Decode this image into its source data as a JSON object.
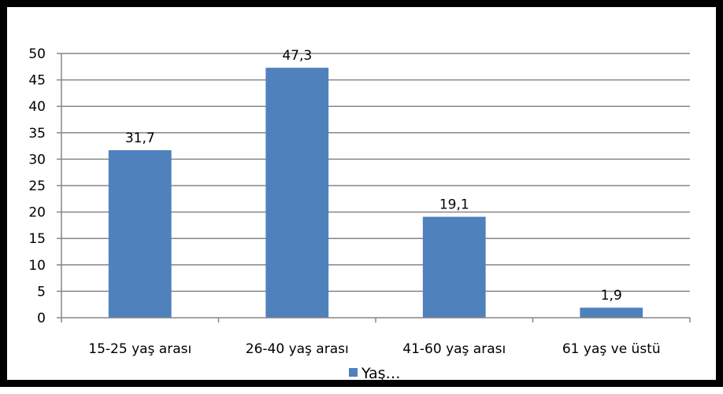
{
  "chart_data": {
    "type": "bar",
    "categories": [
      "15-25 yaş arası",
      "26-40 yaş arası",
      "41-60 yaş arası",
      "61 yaş ve üstü"
    ],
    "series": [
      {
        "name": "Yaş…",
        "values": [
          31.7,
          47.3,
          19.1,
          1.9
        ]
      }
    ],
    "data_labels": [
      "31,7",
      "47,3",
      "19,1",
      "1,9"
    ],
    "y_ticks": [
      "0",
      "5",
      "10",
      "15",
      "20",
      "25",
      "30",
      "35",
      "40",
      "45",
      "50"
    ],
    "ylim": [
      0,
      50
    ],
    "grid": true,
    "legend_position": "bottom",
    "bar_color": "#4F81BD",
    "grid_color": "#868686"
  }
}
